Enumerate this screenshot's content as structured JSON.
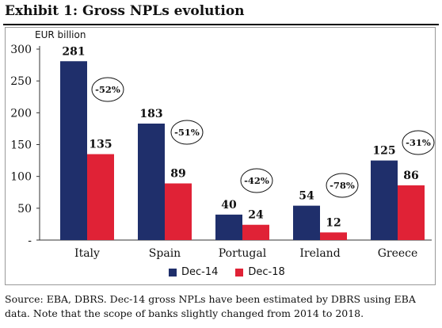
{
  "header": {
    "title": "Exhibit 1: Gross NPLs evolution"
  },
  "source_note": "Source: EBA, DBRS. Dec-14 gross NPLs have been estimated by DBRS using EBA data. Note that the scope of banks slightly changed from 2014 to 2018.",
  "colors": {
    "dec14": "#1f2f6b",
    "dec18": "#e02236"
  },
  "chart_data": {
    "type": "bar",
    "ylabel": "EUR billion",
    "ylim": [
      0,
      300
    ],
    "yticks": [
      "-",
      "50",
      "100",
      "150",
      "200",
      "250",
      "300"
    ],
    "categories": [
      "Italy",
      "Spain",
      "Portugal",
      "Ireland",
      "Greece"
    ],
    "series": [
      {
        "name": "Dec-14",
        "values": [
          281,
          183,
          40,
          54,
          125
        ]
      },
      {
        "name": "Dec-18",
        "values": [
          135,
          89,
          24,
          12,
          86
        ]
      }
    ],
    "annotations": [
      "-52%",
      "-51%",
      "-42%",
      "-78%",
      "-31%"
    ],
    "legend": "bottom-center",
    "grid": false
  }
}
